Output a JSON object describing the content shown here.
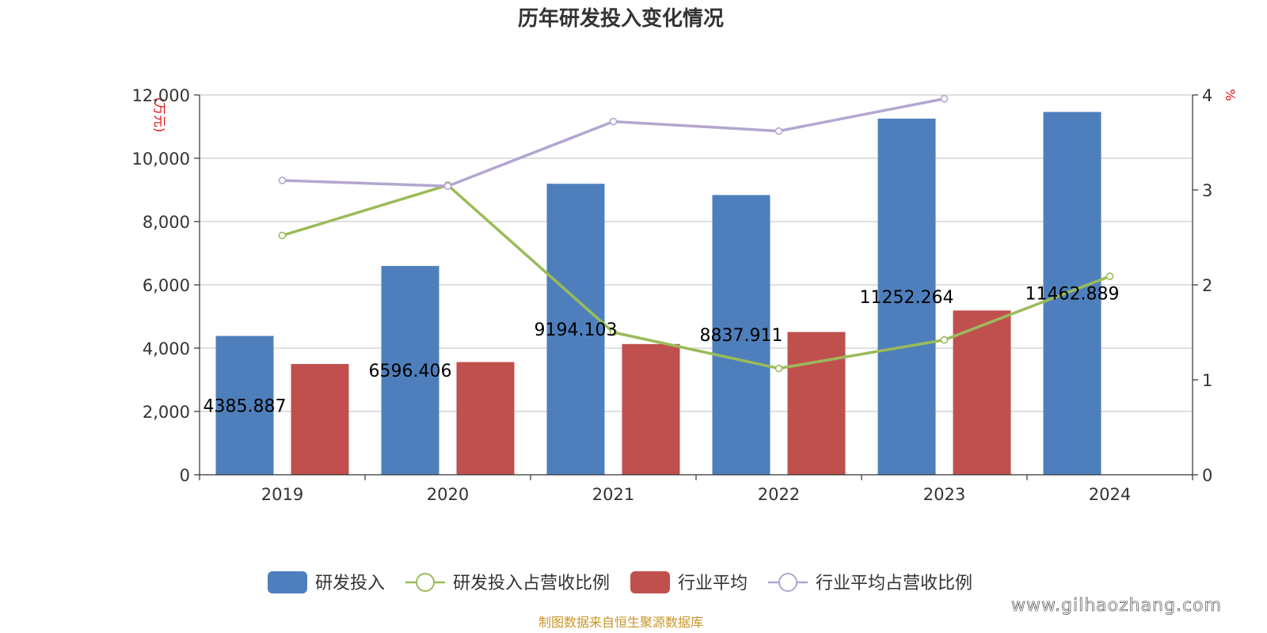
{
  "chart_data": {
    "type": "bar",
    "title": "历年研发投入变化情况",
    "categories": [
      "2019",
      "2020",
      "2021",
      "2022",
      "2023",
      "2024"
    ],
    "y_left": {
      "unit": "(万元)",
      "ylim": [
        0,
        12000
      ],
      "ticks": [
        0,
        2000,
        4000,
        6000,
        8000,
        10000,
        12000
      ],
      "tick_labels": [
        "0",
        "2,000",
        "4,000",
        "6,000",
        "8,000",
        "10,000",
        "12,000"
      ]
    },
    "y_right": {
      "unit": "%",
      "ylim": [
        0,
        4
      ],
      "ticks": [
        0,
        1,
        2,
        3,
        4
      ],
      "tick_labels": [
        "0",
        "1",
        "2",
        "3",
        "4"
      ]
    },
    "series": [
      {
        "name": "研发投入",
        "type": "bar",
        "axis": "left",
        "color": "#4e7fbc",
        "values": [
          4385.887,
          6596.406,
          9194.103,
          8837.911,
          11252.264,
          11462.889
        ],
        "labels": [
          "4385.887",
          "6596.406",
          "9194.103",
          "8837.911",
          "11252.264",
          "11462.889"
        ]
      },
      {
        "name": "研发投入占营收比例",
        "type": "line",
        "axis": "right",
        "color": "#9bbb59",
        "values": [
          2.52,
          3.05,
          1.5,
          1.12,
          1.42,
          2.09
        ]
      },
      {
        "name": "行业平均",
        "type": "bar",
        "axis": "left",
        "color": "#c0504d",
        "values": [
          3500,
          3560,
          4130,
          4510,
          5190,
          null
        ]
      },
      {
        "name": "行业平均占营收比例",
        "type": "line",
        "axis": "right",
        "color": "#b3a6d1",
        "values": [
          3.1,
          3.04,
          3.72,
          3.62,
          3.96,
          null
        ]
      }
    ],
    "legend_position": "bottom"
  },
  "source_text": "制图数据来自恒生聚源数据库",
  "watermark_text": "www.gilhaozhang.com"
}
